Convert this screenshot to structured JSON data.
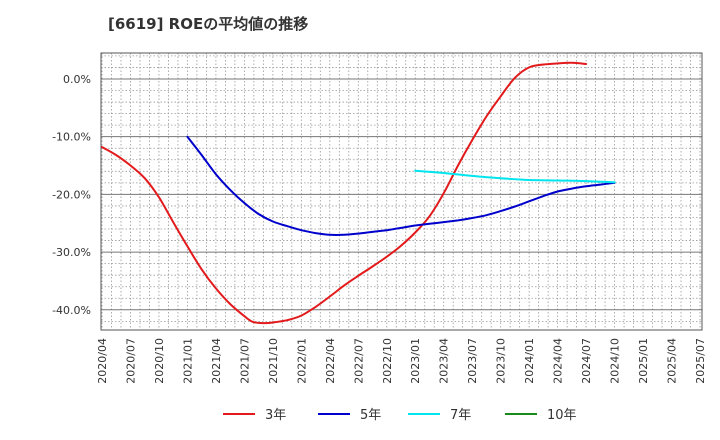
{
  "chart_data": {
    "type": "line",
    "title": "[6619]  ROEの平均値の推移",
    "xlabel": "",
    "ylabel": "",
    "x_tick_labels": [
      "2020/04",
      "2020/07",
      "2020/10",
      "2021/01",
      "2021/04",
      "2021/07",
      "2021/10",
      "2022/01",
      "2022/04",
      "2022/07",
      "2022/10",
      "2023/01",
      "2023/04",
      "2023/07",
      "2023/10",
      "2024/01",
      "2024/04",
      "2024/07",
      "2024/10",
      "2025/01",
      "2025/04",
      "2025/07"
    ],
    "y_tick_values": [
      0,
      -10,
      -20,
      -30,
      -40
    ],
    "y_tick_labels": [
      "0.0%",
      "-10.0%",
      "-20.0%",
      "-30.0%",
      "-40.0%"
    ],
    "ylim": [
      -43.5,
      4.5
    ],
    "xlim_index": [
      0,
      21
    ],
    "grid": true,
    "legend_position": "bottom",
    "series": [
      {
        "name": "3年",
        "color": "#e31a1c",
        "points": [
          [
            0,
            -11.8
          ],
          [
            0.5,
            -13.2
          ],
          [
            1,
            -15
          ],
          [
            1.5,
            -17.2
          ],
          [
            2,
            -20.5
          ],
          [
            2.5,
            -24.8
          ],
          [
            3,
            -29
          ],
          [
            3.5,
            -33
          ],
          [
            4,
            -36.3
          ],
          [
            4.5,
            -39
          ],
          [
            5,
            -41.1
          ],
          [
            5.3,
            -42.1
          ],
          [
            5.7,
            -42.3
          ],
          [
            6,
            -42.2
          ],
          [
            6.5,
            -41.8
          ],
          [
            7,
            -41
          ],
          [
            7.5,
            -39.5
          ],
          [
            8,
            -37.7
          ],
          [
            8.5,
            -35.8
          ],
          [
            9,
            -34.1
          ],
          [
            9.5,
            -32.5
          ],
          [
            10,
            -30.8
          ],
          [
            10.5,
            -28.9
          ],
          [
            11,
            -26.6
          ],
          [
            11.5,
            -23.8
          ],
          [
            12,
            -19.8
          ],
          [
            12.5,
            -15
          ],
          [
            13,
            -10.6
          ],
          [
            13.5,
            -6.5
          ],
          [
            14,
            -3
          ],
          [
            14.5,
            0.2
          ],
          [
            15,
            2
          ],
          [
            15.5,
            2.5
          ],
          [
            16,
            2.7
          ],
          [
            16.5,
            2.8
          ],
          [
            17,
            2.6
          ]
        ]
      },
      {
        "name": "5年",
        "color": "#0000cc",
        "points": [
          [
            3,
            -10
          ],
          [
            3.5,
            -13.2
          ],
          [
            4,
            -16.5
          ],
          [
            4.5,
            -19.2
          ],
          [
            5,
            -21.5
          ],
          [
            5.5,
            -23.4
          ],
          [
            6,
            -24.7
          ],
          [
            6.5,
            -25.5
          ],
          [
            7,
            -26.2
          ],
          [
            7.5,
            -26.7
          ],
          [
            8,
            -27
          ],
          [
            8.5,
            -27
          ],
          [
            9,
            -26.8
          ],
          [
            9.5,
            -26.5
          ],
          [
            10,
            -26.2
          ],
          [
            10.5,
            -25.8
          ],
          [
            11,
            -25.4
          ],
          [
            11.5,
            -25.1
          ],
          [
            12,
            -24.8
          ],
          [
            12.5,
            -24.5
          ],
          [
            13,
            -24.1
          ],
          [
            13.5,
            -23.6
          ],
          [
            14,
            -22.9
          ],
          [
            14.5,
            -22.1
          ],
          [
            15,
            -21.2
          ],
          [
            15.5,
            -20.3
          ],
          [
            16,
            -19.5
          ],
          [
            16.5,
            -19
          ],
          [
            17,
            -18.6
          ],
          [
            17.5,
            -18.3
          ],
          [
            18,
            -18
          ]
        ]
      },
      {
        "name": "7年",
        "color": "#00e5ee",
        "points": [
          [
            11,
            -15.9
          ],
          [
            12,
            -16.3
          ],
          [
            13,
            -16.8
          ],
          [
            14,
            -17.2
          ],
          [
            15,
            -17.5
          ],
          [
            16,
            -17.6
          ],
          [
            17,
            -17.7
          ],
          [
            18,
            -17.9
          ]
        ]
      },
      {
        "name": "10年",
        "color": "#1a8a1a",
        "points": []
      }
    ]
  }
}
